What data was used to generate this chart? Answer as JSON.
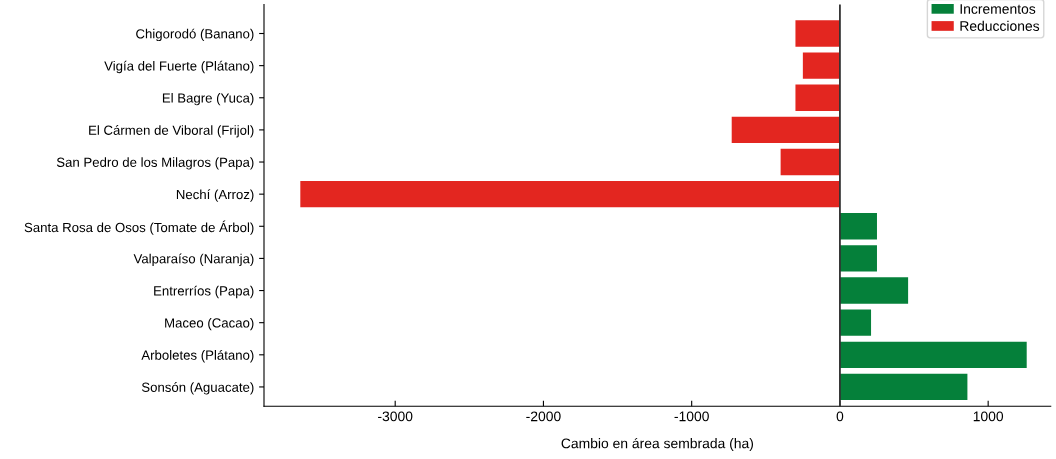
{
  "chart_data": {
    "type": "bar",
    "orientation": "horizontal",
    "xlabel": "Cambio en área sembrada (ha)",
    "categories": [
      "Chigorodó (Banano)",
      "Vigía del Fuerte (Plátano)",
      "El Bagre (Yuca)",
      "El Cármen de Viboral (Frijol)",
      "San Pedro de los Milagros (Papa)",
      "Nechí (Arroz)",
      "Santa Rosa de Osos (Tomate de Árbol)",
      "Valparaíso (Naranja)",
      "Entrerríos (Papa)",
      "Maceo (Cacao)",
      "Arboletes (Plátano)",
      "Sonsón (Aguacate)"
    ],
    "series": [
      {
        "name": "Incrementos",
        "color": "#05803a",
        "values": [
          null,
          null,
          null,
          null,
          null,
          null,
          250,
          250,
          460,
          210,
          1260,
          860
        ]
      },
      {
        "name": "Reducciones",
        "color": "#e32620",
        "values": [
          -300,
          -250,
          -300,
          -730,
          -400,
          -3640,
          null,
          null,
          null,
          null,
          null,
          null
        ]
      }
    ],
    "xlim": [
      -3885,
      1422
    ],
    "xticks": [
      -3000,
      -2000,
      -1000,
      0,
      1000
    ],
    "ref_lines": [
      {
        "axis": "x",
        "value": 0,
        "color": "#333333"
      }
    ],
    "grid": false,
    "legend": "top right"
  }
}
